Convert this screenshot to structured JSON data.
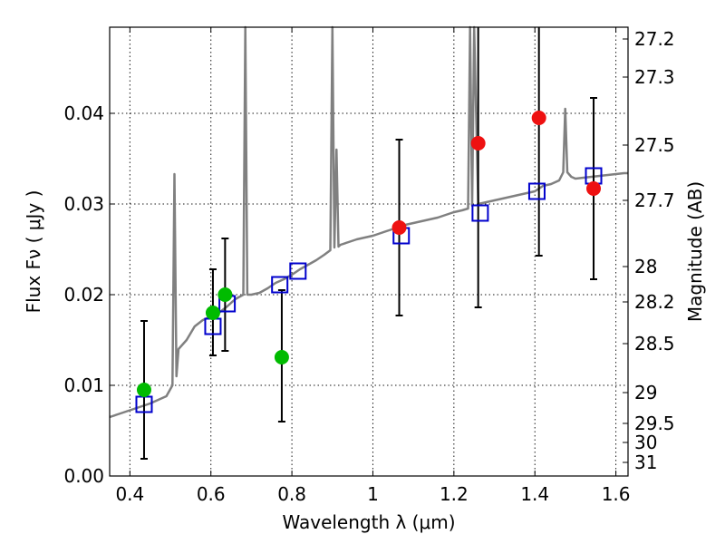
{
  "chart_data": {
    "type": "scatter",
    "xlabel": "Wavelength  λ (μm)",
    "ylabel": "Flux  Fν  ( μJy )",
    "y2label": "Magnitude (AB)",
    "xlim": [
      0.35,
      1.63
    ],
    "ylim": [
      0.0,
      0.0495
    ],
    "x_ticks": [
      0.4,
      0.6,
      0.8,
      1.0,
      1.2,
      1.4,
      1.6
    ],
    "x_tick_labels": [
      "0.4",
      "0.6",
      "0.8",
      "1",
      "1.2",
      "1.4",
      "1.6"
    ],
    "y_ticks": [
      0.0,
      0.01,
      0.02,
      0.03,
      0.04
    ],
    "y_tick_labels": [
      "0.00",
      "0.01",
      "0.02",
      "0.03",
      "0.04"
    ],
    "y2_ticks": [
      {
        "label": "27.2",
        "flux": 0.0482
      },
      {
        "label": "27.3",
        "flux": 0.044
      },
      {
        "label": "27.5",
        "flux": 0.0365
      },
      {
        "label": "27.7",
        "flux": 0.0304
      },
      {
        "label": "28",
        "flux": 0.0231
      },
      {
        "label": "28.2",
        "flux": 0.0192
      },
      {
        "label": "28.5",
        "flux": 0.0146
      },
      {
        "label": "29",
        "flux": 0.0092
      },
      {
        "label": "29.5",
        "flux": 0.0058
      },
      {
        "label": "30",
        "flux": 0.0037
      },
      {
        "label": "31",
        "flux": 0.0015
      }
    ],
    "grid": true,
    "colors": {
      "spectrum": "#808080",
      "green_points": "#00bb00",
      "red_points": "#ee1111",
      "model_squares": "#0000cc",
      "error_bars": "#000000"
    },
    "series": [
      {
        "marker": "line",
        "x": [
          0.35,
          0.37,
          0.39,
          0.41,
          0.43,
          0.45,
          0.47,
          0.49,
          0.505,
          0.51,
          0.515,
          0.52,
          0.54,
          0.56,
          0.58,
          0.6,
          0.62,
          0.64,
          0.66,
          0.68,
          0.685,
          0.69,
          0.7,
          0.72,
          0.74,
          0.76,
          0.78,
          0.8,
          0.82,
          0.84,
          0.86,
          0.88,
          0.895,
          0.9,
          0.905,
          0.91,
          0.915,
          0.92,
          0.94,
          0.96,
          0.98,
          1.0,
          1.02,
          1.04,
          1.06,
          1.08,
          1.1,
          1.12,
          1.14,
          1.16,
          1.18,
          1.2,
          1.22,
          1.235,
          1.24,
          1.245,
          1.25,
          1.26,
          1.28,
          1.3,
          1.32,
          1.34,
          1.36,
          1.38,
          1.4,
          1.42,
          1.44,
          1.46,
          1.47,
          1.475,
          1.48,
          1.49,
          1.5,
          1.52,
          1.54,
          1.56,
          1.58,
          1.6,
          1.62,
          1.63
        ],
        "y": [
          0.0065,
          0.0068,
          0.0071,
          0.0074,
          0.0077,
          0.008,
          0.0084,
          0.0088,
          0.01,
          0.0333,
          0.011,
          0.014,
          0.015,
          0.0165,
          0.0172,
          0.0176,
          0.018,
          0.0187,
          0.0195,
          0.02,
          0.0495,
          0.02,
          0.02,
          0.0202,
          0.0207,
          0.0213,
          0.0217,
          0.0222,
          0.0228,
          0.0233,
          0.0238,
          0.0244,
          0.0249,
          0.0495,
          0.0252,
          0.036,
          0.0253,
          0.0255,
          0.0258,
          0.0261,
          0.0263,
          0.0265,
          0.0268,
          0.0271,
          0.0274,
          0.0277,
          0.0279,
          0.0281,
          0.0283,
          0.0285,
          0.0288,
          0.0291,
          0.0293,
          0.0295,
          0.0495,
          0.0298,
          0.0495,
          0.03,
          0.0302,
          0.0304,
          0.0306,
          0.0308,
          0.031,
          0.0312,
          0.0314,
          0.032,
          0.0322,
          0.0326,
          0.0335,
          0.0405,
          0.0335,
          0.033,
          0.0328,
          0.0329,
          0.033,
          0.0331,
          0.0332,
          0.0333,
          0.0334,
          0.0334
        ]
      },
      {
        "marker": "circle",
        "x": [
          0.435,
          0.605,
          0.635,
          0.775
        ],
        "y": [
          0.0095,
          0.018,
          0.02,
          0.0131
        ],
        "yerr_low": [
          0.0019,
          0.0133,
          0.0138,
          0.006
        ],
        "yerr_high": [
          0.0171,
          0.0228,
          0.0262,
          0.0205
        ]
      },
      {
        "marker": "circle",
        "x": [
          1.065,
          1.26,
          1.41,
          1.545
        ],
        "y": [
          0.0274,
          0.0367,
          0.0395,
          0.0317
        ],
        "yerr_low": [
          0.0177,
          0.0186,
          0.0243,
          0.0217
        ],
        "yerr_high": [
          0.0371,
          0.0495,
          0.0495,
          0.0417
        ]
      },
      {
        "marker": "square",
        "x": [
          0.435,
          0.605,
          0.64,
          0.77,
          0.815,
          1.07,
          1.265,
          1.405,
          1.545
        ],
        "y": [
          0.0079,
          0.0165,
          0.019,
          0.0211,
          0.0226,
          0.0265,
          0.029,
          0.0314,
          0.0331
        ]
      }
    ]
  }
}
